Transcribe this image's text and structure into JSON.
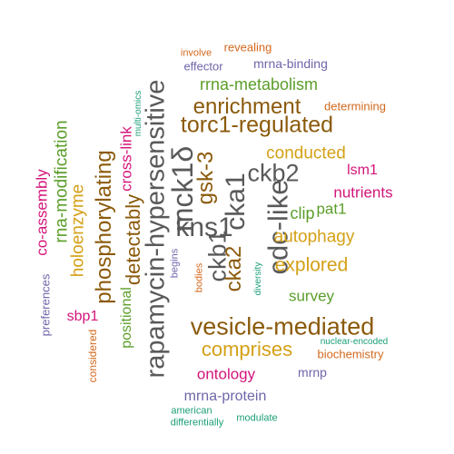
{
  "palette": {
    "gray": "#595959",
    "brown": "#8B5A0B",
    "gold": "#D4A017",
    "green": "#5B9E2A",
    "magenta": "#D4157A",
    "purple": "#6E66AA",
    "orange": "#D2691E",
    "teal": "#1B9E77"
  },
  "words": [
    {
      "text": "rapamycin-hypersensitive",
      "color": "gray",
      "rotated": true
    },
    {
      "text": "mck1δ",
      "color": "gray",
      "rotated": true
    },
    {
      "text": "kns1",
      "color": "gray",
      "rotated": false
    },
    {
      "text": "cka1",
      "color": "gray",
      "rotated": true
    },
    {
      "text": "cdc-like",
      "color": "gray",
      "rotated": true
    },
    {
      "text": "ckb2",
      "color": "gray",
      "rotated": false
    },
    {
      "text": "ckb1",
      "color": "gray",
      "rotated": true
    },
    {
      "text": "gsk-3",
      "color": "brown",
      "rotated": true
    },
    {
      "text": "cka2",
      "color": "brown",
      "rotated": true
    },
    {
      "text": "vesicle-mediated",
      "color": "brown",
      "rotated": false
    },
    {
      "text": "torc1-regulated",
      "color": "brown",
      "rotated": false
    },
    {
      "text": "phosphorylating",
      "color": "brown",
      "rotated": true
    },
    {
      "text": "enrichment",
      "color": "brown",
      "rotated": false
    },
    {
      "text": "detectably",
      "color": "brown",
      "rotated": true
    },
    {
      "text": "comprises",
      "color": "gold",
      "rotated": false
    },
    {
      "text": "explored",
      "color": "gold",
      "rotated": false
    },
    {
      "text": "autophagy",
      "color": "gold",
      "rotated": false
    },
    {
      "text": "conducted",
      "color": "gold",
      "rotated": false
    },
    {
      "text": "holoenzyme",
      "color": "gold",
      "rotated": true
    },
    {
      "text": "rrna-metabolism",
      "color": "green",
      "rotated": false
    },
    {
      "text": "rna-modification",
      "color": "green",
      "rotated": true
    },
    {
      "text": "positional",
      "color": "green",
      "rotated": true
    },
    {
      "text": "survey",
      "color": "green",
      "rotated": false
    },
    {
      "text": "clip",
      "color": "green",
      "rotated": false
    },
    {
      "text": "pat1",
      "color": "green",
      "rotated": false
    },
    {
      "text": "co-assembly",
      "color": "magenta",
      "rotated": true
    },
    {
      "text": "cross-link",
      "color": "magenta",
      "rotated": true
    },
    {
      "text": "nutrients",
      "color": "magenta",
      "rotated": false
    },
    {
      "text": "lsm1",
      "color": "magenta",
      "rotated": false
    },
    {
      "text": "ontology",
      "color": "magenta",
      "rotated": false
    },
    {
      "text": "sbp1",
      "color": "magenta",
      "rotated": false
    },
    {
      "text": "mrna-protein",
      "color": "purple",
      "rotated": false
    },
    {
      "text": "mrna-binding",
      "color": "purple",
      "rotated": false
    },
    {
      "text": "preferences",
      "color": "purple",
      "rotated": true
    },
    {
      "text": "mrnp",
      "color": "purple",
      "rotated": false
    },
    {
      "text": "effector",
      "color": "purple",
      "rotated": false
    },
    {
      "text": "begins",
      "color": "purple",
      "rotated": true
    },
    {
      "text": "determining",
      "color": "orange",
      "rotated": false
    },
    {
      "text": "biochemistry",
      "color": "orange",
      "rotated": false
    },
    {
      "text": "revealing",
      "color": "orange",
      "rotated": false
    },
    {
      "text": "involve",
      "color": "orange",
      "rotated": false
    },
    {
      "text": "considered",
      "color": "orange",
      "rotated": true
    },
    {
      "text": "bodies",
      "color": "orange",
      "rotated": true
    },
    {
      "text": "nuclear-encoded",
      "color": "teal",
      "rotated": false
    },
    {
      "text": "multi-omics",
      "color": "teal",
      "rotated": true
    },
    {
      "text": "diversity",
      "color": "teal",
      "rotated": true
    },
    {
      "text": "american",
      "color": "teal",
      "rotated": false
    },
    {
      "text": "modulate",
      "color": "teal",
      "rotated": false
    },
    {
      "text": "differentially",
      "color": "teal",
      "rotated": false
    }
  ]
}
